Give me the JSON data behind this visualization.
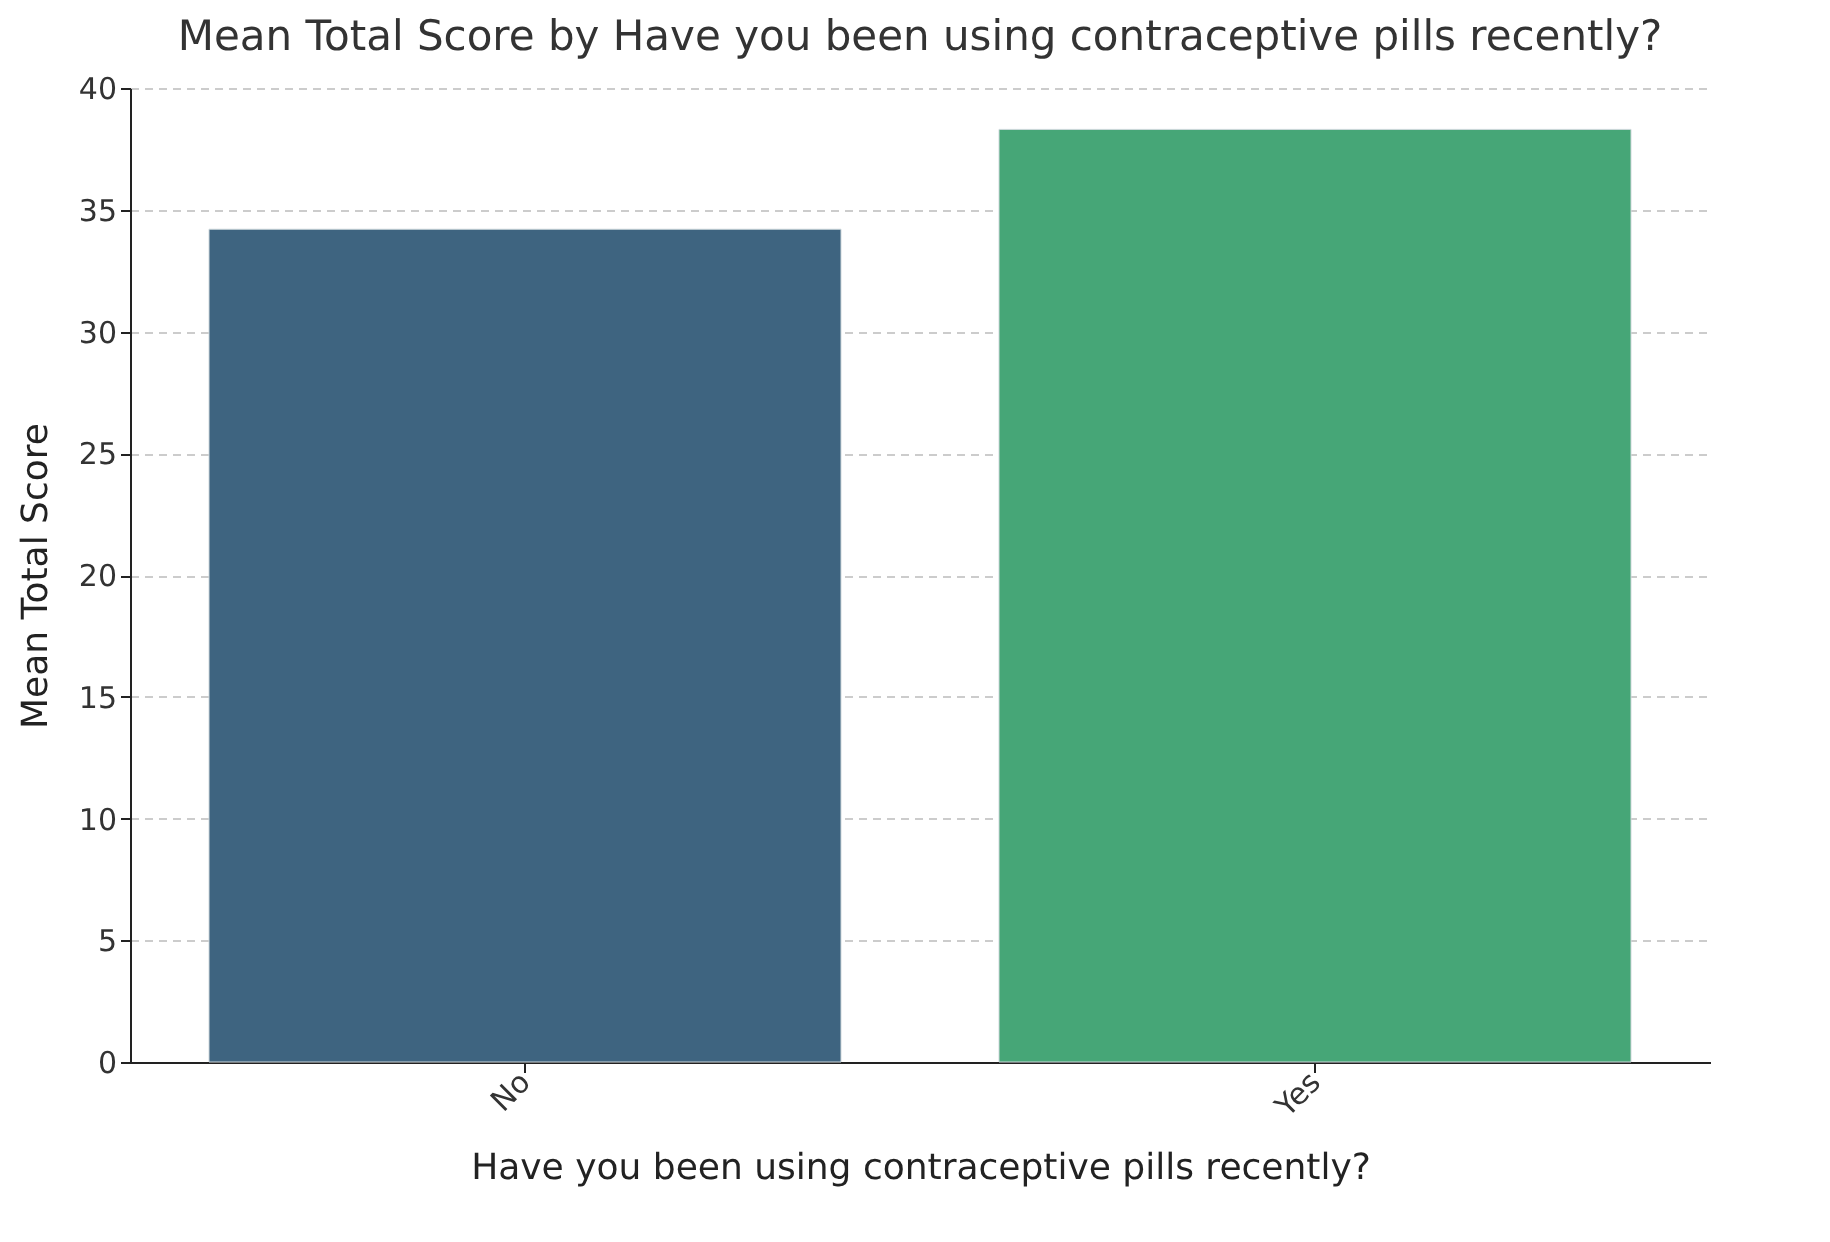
{
  "chart_data": {
    "type": "bar",
    "title": "Mean Total Score by Have you been using contraceptive pills recently?",
    "xlabel": "Have you been using contraceptive pills recently?",
    "ylabel": "Mean Total Score",
    "categories": [
      "No",
      "Yes"
    ],
    "values": [
      34.2,
      38.3
    ],
    "colors": [
      "#3e6480",
      "#46a677"
    ],
    "ylim": [
      0,
      40
    ],
    "yticks": [
      0,
      5,
      10,
      15,
      20,
      25,
      30,
      35,
      40
    ],
    "grid": "y"
  }
}
